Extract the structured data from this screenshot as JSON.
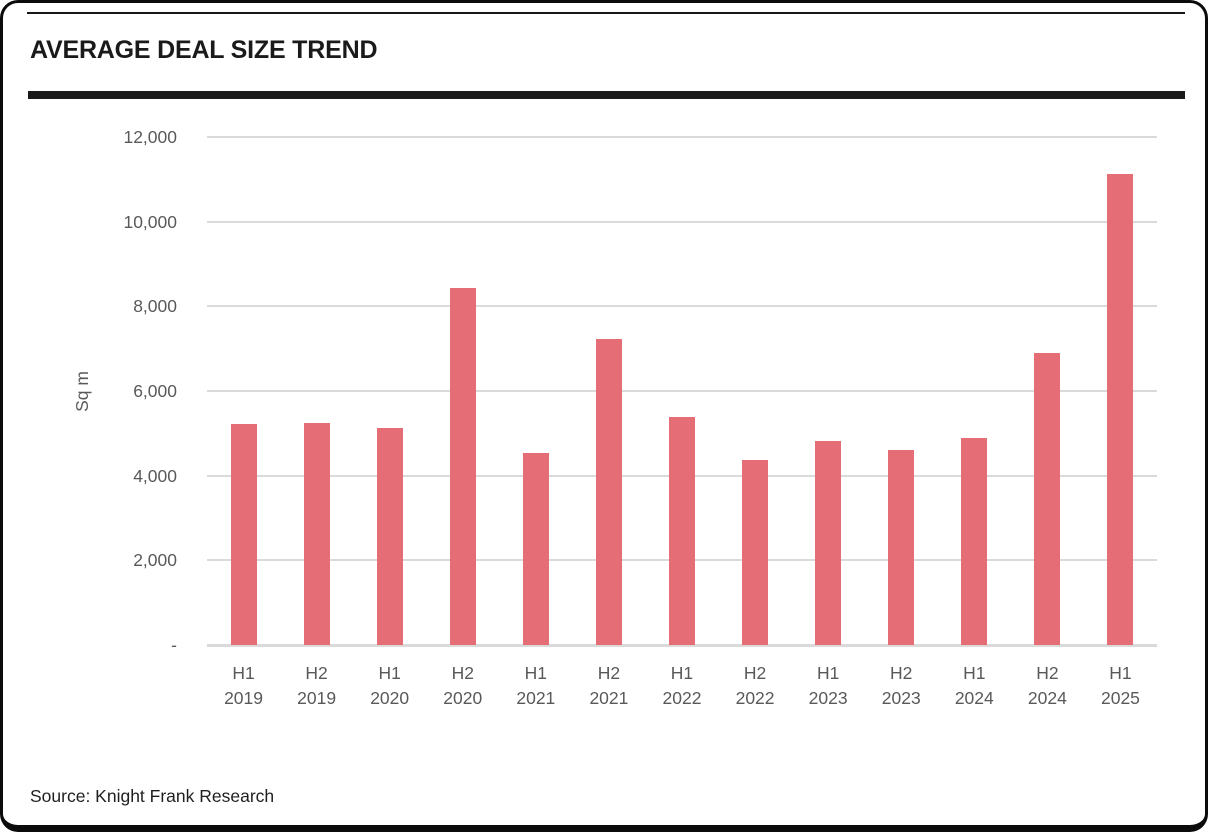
{
  "header": {
    "title": "AVERAGE DEAL SIZE TREND"
  },
  "footer": {
    "source": "Source: Knight Frank Research"
  },
  "chart_data": {
    "type": "bar",
    "title": "AVERAGE DEAL SIZE TREND",
    "categories": [
      "H1 2019",
      "H2 2019",
      "H1 2020",
      "H2 2020",
      "H1 2021",
      "H2 2021",
      "H1 2022",
      "H2 2022",
      "H1 2023",
      "H2 2023",
      "H1 2024",
      "H2 2024",
      "H1 2025"
    ],
    "values": [
      5220,
      5250,
      5120,
      8440,
      4540,
      7220,
      5390,
      4380,
      4830,
      4600,
      4890,
      6900,
      11130
    ],
    "xlabel": "",
    "ylabel": "Sq m",
    "ylim": [
      0,
      12000
    ],
    "yticks": [
      {
        "value": 12000,
        "label": "12,000"
      },
      {
        "value": 10000,
        "label": "10,000"
      },
      {
        "value": 8000,
        "label": "8,000"
      },
      {
        "value": 6000,
        "label": "6,000"
      },
      {
        "value": 4000,
        "label": "4,000"
      },
      {
        "value": 2000,
        "label": "2,000"
      },
      {
        "value": 0,
        "label": "-"
      }
    ],
    "grid": "horizontal-on",
    "legend": "none",
    "bar_color": "#e56e76",
    "grid_color": "#dadada",
    "axis_text_color": "#595959"
  }
}
